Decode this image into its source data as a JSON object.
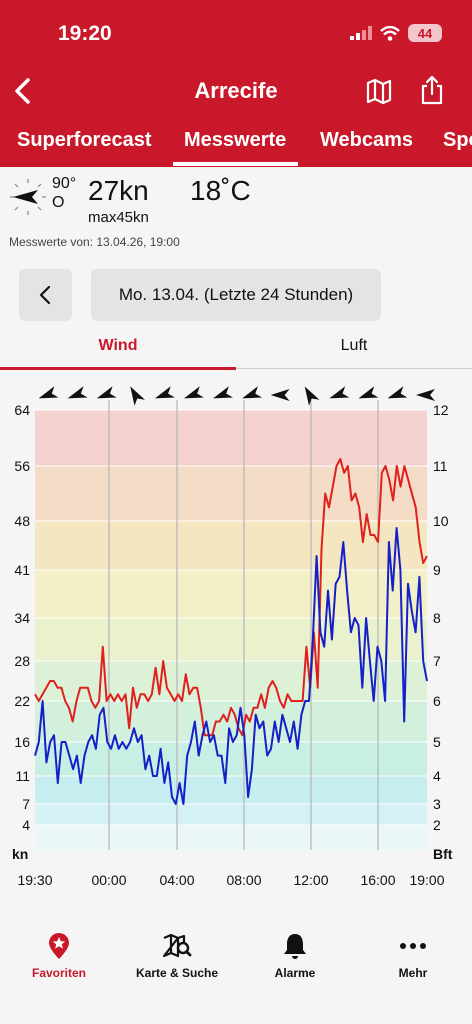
{
  "status": {
    "time": "19:20",
    "battery": "44"
  },
  "header": {
    "title": "Arrecife"
  },
  "tabs": [
    "Superforecast",
    "Messwerte",
    "Webcams",
    "Spo"
  ],
  "current": {
    "direction_deg": "90°",
    "direction_label": "O",
    "speed": "27kn",
    "max": "max45kn",
    "temperature": "18˚C",
    "measured_at": "Messwerte von: 13.04.26, 19:00"
  },
  "date_selector": {
    "label": "Mo. 13.04. (Letzte 24 Stunden)"
  },
  "segments": {
    "wind": "Wind",
    "luft": "Luft"
  },
  "chart_data": {
    "type": "line",
    "left_unit": "kn",
    "right_unit": "Bft",
    "left_ticks": [
      "64",
      "56",
      "48",
      "41",
      "34",
      "28",
      "22",
      "16",
      "11",
      "7",
      "4"
    ],
    "right_ticks": [
      "12",
      "11",
      "10",
      "9",
      "8",
      "7",
      "6",
      "5",
      "4",
      "3",
      "2"
    ],
    "x_labels": [
      "19:30",
      "00:00",
      "04:00",
      "08:00",
      "12:00",
      "16:00",
      "19:00"
    ],
    "colors": {
      "gust": "#e0201c",
      "mean": "#1520c8"
    },
    "direction_arrows_deg": [
      70,
      70,
      70,
      150,
      70,
      70,
      70,
      70,
      90,
      150,
      70,
      70,
      70,
      90
    ],
    "series": [
      {
        "name": "",
        "color": "#e0201c",
        "values": [
          23,
          22,
          23,
          24,
          25,
          25,
          24,
          24,
          22,
          21,
          19,
          22,
          24,
          24,
          24,
          22,
          21,
          22,
          30,
          22,
          23,
          22,
          23,
          22,
          23,
          18,
          24,
          21,
          23,
          23,
          22,
          23,
          27,
          23,
          28,
          24,
          23,
          22,
          23,
          22,
          26,
          23,
          24,
          24,
          21,
          17,
          17,
          17,
          19,
          19,
          20,
          19,
          21,
          20,
          18,
          17,
          20,
          19,
          21,
          21,
          23,
          21,
          24,
          25,
          24,
          22,
          21,
          23,
          22,
          22,
          22,
          22,
          30,
          24,
          32,
          24,
          44,
          52,
          50,
          53,
          56,
          57,
          55,
          56,
          51,
          52,
          50,
          45,
          49,
          46,
          46,
          45,
          55,
          56,
          54,
          51,
          56,
          53,
          56,
          54,
          52,
          50,
          45,
          42,
          43
        ]
      },
      {
        "name": "",
        "color": "#1520c8",
        "values": [
          14,
          16,
          22,
          13,
          16,
          17,
          10,
          16,
          16,
          14,
          12,
          14,
          10,
          14,
          16,
          17,
          15,
          20,
          21,
          16,
          15,
          17,
          15,
          16,
          15,
          16,
          18,
          16,
          17,
          12,
          14,
          11,
          11,
          15,
          10,
          13,
          8,
          7,
          10,
          7,
          14,
          16,
          19,
          14,
          17,
          19,
          16,
          17,
          14,
          14,
          10,
          18,
          16,
          17,
          21,
          17,
          8,
          12,
          20,
          18,
          19,
          14,
          15,
          19,
          16,
          20,
          18,
          16,
          19,
          15,
          20,
          22,
          22,
          31,
          43,
          32,
          30,
          38,
          31,
          39,
          40,
          45,
          38,
          32,
          34,
          33,
          24,
          34,
          28,
          22,
          30,
          28,
          22,
          45,
          38,
          47,
          41,
          19,
          39,
          35,
          32,
          40,
          28,
          25
        ]
      }
    ]
  },
  "tabbar": [
    "Favoriten",
    "Karte & Suche",
    "Alarme",
    "Mehr"
  ]
}
